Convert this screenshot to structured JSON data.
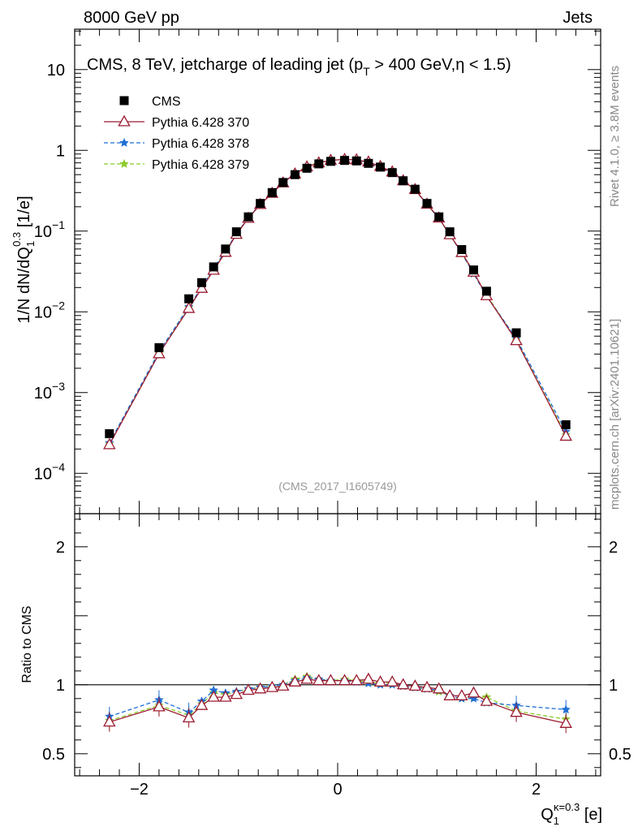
{
  "header": {
    "left": "8000 GeV pp",
    "right": "Jets",
    "side_rivet": "Rivet 4.1.0, ≥ 3.8M events",
    "side_mcplots": "mcplots.cern.ch [arXiv:2401.10621]"
  },
  "chart_data": {
    "type": "scatter",
    "title_main": "CMS, 8 TeV, jetcharge of leading jet (p",
    "title_sub": "T",
    "title_rest": " > 400 GeV,η < 1.5)",
    "watermark": "(CMS_2017_I1605749)",
    "ylabel": "1/N dN/dQ",
    "ylabel_sub": "1",
    "ylabel_sup": "0.3",
    "ylabel_unit": " [1/e]",
    "xlabel": "Q",
    "xlabel_sub": "1",
    "xlabel_sup": "κ=0.3",
    "xlabel_unit": " [e]",
    "ratio_ylabel": "Ratio to CMS",
    "xlim": [
      -2.65,
      2.65
    ],
    "ylim_log": [
      -4.5,
      1.5
    ],
    "ratio_ylim": [
      0.34,
      2.24
    ],
    "x_ticks": [
      {
        "v": -2,
        "label": "−2"
      },
      {
        "v": 0,
        "label": "0"
      },
      {
        "v": 2,
        "label": "2"
      }
    ],
    "y_ticks": [
      {
        "exp": 1,
        "base": "10",
        "sup": ""
      },
      {
        "exp": 0,
        "base": "1",
        "sup": ""
      },
      {
        "exp": -1,
        "base": "10",
        "sup": "−1"
      },
      {
        "exp": -2,
        "base": "10",
        "sup": "−2"
      },
      {
        "exp": -3,
        "base": "10",
        "sup": "−3"
      },
      {
        "exp": -4,
        "base": "10",
        "sup": "−4"
      }
    ],
    "ratio_ticks": [
      {
        "v": 2,
        "label": "2"
      },
      {
        "v": 1,
        "label": "1"
      },
      {
        "v": 0.5,
        "label": "0.5"
      }
    ],
    "x": [
      -2.3,
      -1.8,
      -1.5,
      -1.37,
      -1.25,
      -1.13,
      -1.02,
      -0.9,
      -0.78,
      -0.66,
      -0.55,
      -0.43,
      -0.31,
      -0.19,
      -0.07,
      0.07,
      0.19,
      0.31,
      0.43,
      0.55,
      0.66,
      0.78,
      0.9,
      1.02,
      1.13,
      1.25,
      1.37,
      1.5,
      1.8,
      2.3
    ],
    "cms": [
      0.00031,
      0.0036,
      0.0145,
      0.023,
      0.036,
      0.06,
      0.098,
      0.15,
      0.22,
      0.3,
      0.4,
      0.5,
      0.6,
      0.68,
      0.73,
      0.75,
      0.74,
      0.69,
      0.62,
      0.53,
      0.42,
      0.33,
      0.22,
      0.15,
      0.098,
      0.059,
      0.033,
      0.018,
      0.0055,
      0.0004
    ],
    "series": [
      {
        "name": "Pythia 6.428 370",
        "color": "#9b1b30",
        "marker": "triangle",
        "dash": "",
        "ratio": [
          0.73,
          0.84,
          0.76,
          0.85,
          0.91,
          0.91,
          0.93,
          0.96,
          0.97,
          0.98,
          0.99,
          1.02,
          1.04,
          1.03,
          1.03,
          1.03,
          1.03,
          1.04,
          1.02,
          1.02,
          1.0,
          0.99,
          0.98,
          0.97,
          0.92,
          0.92,
          0.94,
          0.88,
          0.8,
          0.72
        ]
      },
      {
        "name": "Pythia 6.428 378",
        "color": "#1f6fd6",
        "marker": "star",
        "dash": "5,3",
        "ratio": [
          0.77,
          0.89,
          0.8,
          0.88,
          0.96,
          0.94,
          0.95,
          0.97,
          0.98,
          0.99,
          1.0,
          1.03,
          1.05,
          1.04,
          1.03,
          1.03,
          1.02,
          1.01,
          1.0,
          1.0,
          0.99,
          0.98,
          0.97,
          0.96,
          0.92,
          0.9,
          0.9,
          0.87,
          0.85,
          0.82
        ]
      },
      {
        "name": "Pythia 6.428 379",
        "color": "#8ccb2a",
        "marker": "star",
        "dash": "5,3",
        "ratio": [
          0.74,
          0.85,
          0.78,
          0.86,
          0.94,
          0.93,
          0.95,
          0.97,
          0.98,
          0.99,
          1.0,
          1.04,
          1.06,
          1.04,
          1.03,
          1.04,
          1.03,
          1.02,
          1.01,
          1.01,
          0.99,
          0.98,
          0.97,
          0.95,
          0.92,
          0.9,
          0.91,
          0.91,
          0.81,
          0.75
        ]
      }
    ],
    "legend": [
      {
        "name": "CMS",
        "marker": "square",
        "color": "#000000"
      },
      {
        "name": "Pythia 6.428 370",
        "marker": "triangle",
        "color": "#9b1b30"
      },
      {
        "name": "Pythia 6.428 378",
        "marker": "star",
        "color": "#1f6fd6"
      },
      {
        "name": "Pythia 6.428 379",
        "marker": "star",
        "color": "#8ccb2a"
      }
    ]
  }
}
